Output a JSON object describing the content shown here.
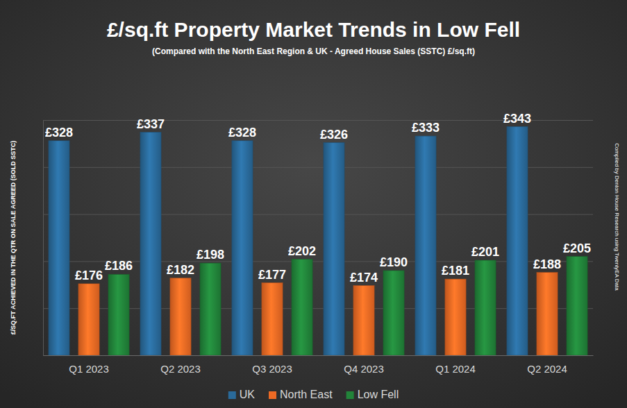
{
  "chart_data": {
    "type": "bar",
    "title": "£/sq.ft Property Market Trends in Low Fell",
    "subtitle": "(Compared with the North East Region & UK - Agreed House Sales (SSTC) £/sq.ft)",
    "y_label": "£/SQ.FT ACHIEVED IN THE QTR ON SALE AGREED (SOLD SSTC)",
    "annotation": "Compiled by Denton House Research using TwentyEA Data",
    "categories": [
      "Q1 2023",
      "Q2 2023",
      "Q3 2023",
      "Q4 2023",
      "Q1 2024",
      "Q2 2024"
    ],
    "series": [
      {
        "name": "UK",
        "color": "#2a6a9a",
        "values": [
          328,
          337,
          328,
          326,
          333,
          343
        ],
        "value_labels": [
          "£328",
          "£337",
          "£328",
          "£326",
          "£333",
          "£343"
        ]
      },
      {
        "name": "North East",
        "color": "#ee6a24",
        "values": [
          176,
          182,
          177,
          174,
          181,
          188
        ],
        "value_labels": [
          "£176",
          "£182",
          "£177",
          "£174",
          "£181",
          "£188"
        ]
      },
      {
        "name": "Low Fell",
        "color": "#22843a",
        "values": [
          186,
          198,
          202,
          190,
          201,
          205
        ],
        "value_labels": [
          "£186",
          "£198",
          "£202",
          "£190",
          "£201",
          "£205"
        ]
      }
    ],
    "ylim": [
      100,
      350
    ],
    "yticks": [
      100,
      150,
      200,
      250,
      300,
      350
    ],
    "grid": true,
    "legend": "bottom",
    "data_labels": true,
    "tick_labels": "x"
  }
}
